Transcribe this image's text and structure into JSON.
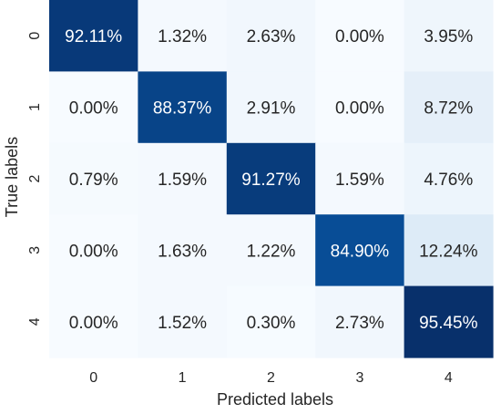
{
  "chart_data": {
    "type": "heatmap",
    "xlabel": "Predicted labels",
    "ylabel": "True labels",
    "x_categories": [
      "0",
      "1",
      "2",
      "3",
      "4"
    ],
    "y_categories": [
      "0",
      "1",
      "2",
      "3",
      "4"
    ],
    "values": [
      [
        92.11,
        1.32,
        2.63,
        0.0,
        3.95
      ],
      [
        0.0,
        88.37,
        2.91,
        0.0,
        8.72
      ],
      [
        0.79,
        1.59,
        91.27,
        1.59,
        4.76
      ],
      [
        0.0,
        1.63,
        1.22,
        84.9,
        12.24
      ],
      [
        0.0,
        1.52,
        0.3,
        2.73,
        95.45
      ]
    ],
    "labels": [
      [
        "92.11%",
        "1.32%",
        "2.63%",
        "0.00%",
        "3.95%"
      ],
      [
        "0.00%",
        "88.37%",
        "2.91%",
        "0.00%",
        "8.72%"
      ],
      [
        "0.79%",
        "1.59%",
        "91.27%",
        "1.59%",
        "4.76%"
      ],
      [
        "0.00%",
        "1.63%",
        "1.22%",
        "84.90%",
        "12.24%"
      ],
      [
        "0.00%",
        "1.52%",
        "0.30%",
        "2.73%",
        "95.45%"
      ]
    ],
    "colormap": "Blues",
    "colorbar": false,
    "grid": false
  }
}
